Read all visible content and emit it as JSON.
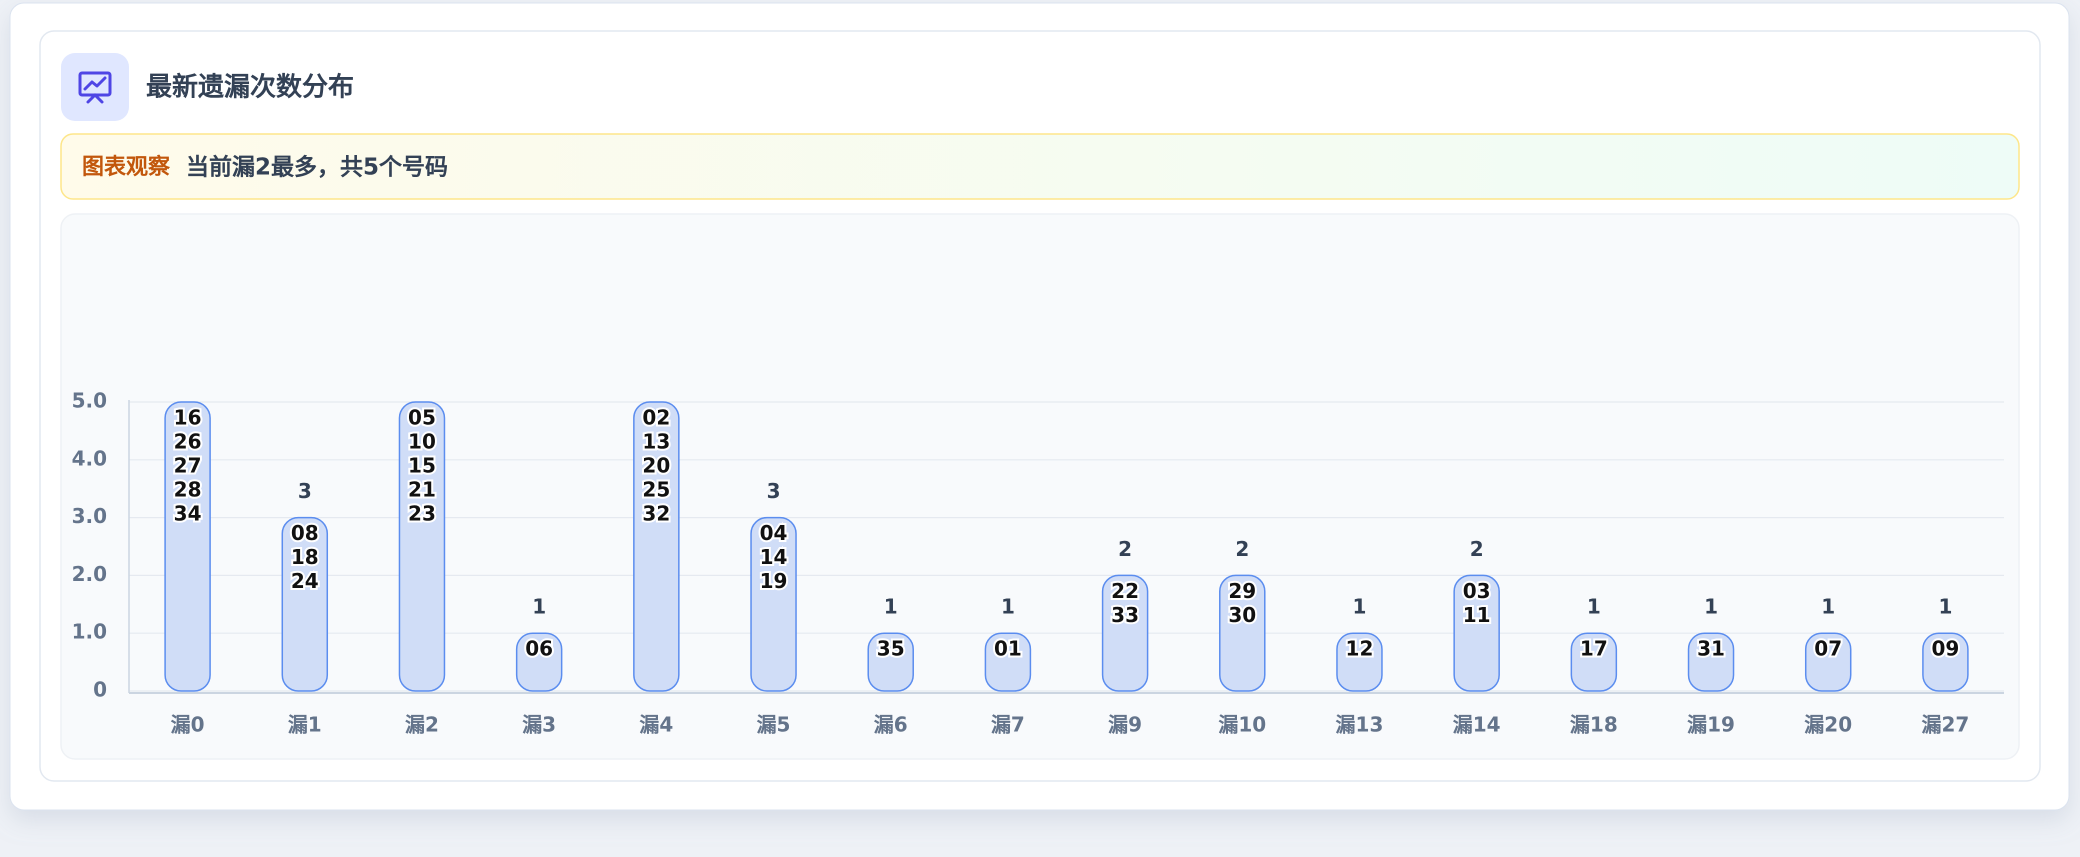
{
  "header": {
    "title": "最新遗漏次数分布"
  },
  "note": {
    "label": "图表观察",
    "text": "当前漏2最多，共5个号码"
  },
  "chart_data": {
    "type": "bar",
    "categories": [
      "漏0",
      "漏1",
      "漏2",
      "漏3",
      "漏4",
      "漏5",
      "漏6",
      "漏7",
      "漏9",
      "漏10",
      "漏13",
      "漏14",
      "漏18",
      "漏19",
      "漏20",
      "漏27"
    ],
    "values": [
      5,
      3,
      5,
      1,
      5,
      3,
      1,
      1,
      2,
      2,
      1,
      2,
      1,
      1,
      1,
      1
    ],
    "numbers": [
      [
        "16",
        "26",
        "27",
        "28",
        "34"
      ],
      [
        "08",
        "18",
        "24"
      ],
      [
        "05",
        "10",
        "15",
        "21",
        "23"
      ],
      [
        "06"
      ],
      [
        "02",
        "13",
        "20",
        "25",
        "32"
      ],
      [
        "04",
        "14",
        "19"
      ],
      [
        "35"
      ],
      [
        "01"
      ],
      [
        "22",
        "33"
      ],
      [
        "29",
        "30"
      ],
      [
        "12"
      ],
      [
        "03",
        "11"
      ],
      [
        "17"
      ],
      [
        "31"
      ],
      [
        "07"
      ],
      [
        "09"
      ]
    ],
    "color": "#d0ddf7",
    "edge_color": "#5b8def",
    "ylim": [
      0,
      5
    ],
    "yticks": [
      0,
      {
        "value": 1,
        "label": "1.0"
      },
      {
        "value": 2,
        "label": "2.0"
      },
      {
        "value": 3,
        "label": "3.0"
      },
      {
        "value": 4,
        "label": "4.0"
      },
      {
        "value": 5,
        "label": "5.0"
      }
    ],
    "grid": true
  }
}
